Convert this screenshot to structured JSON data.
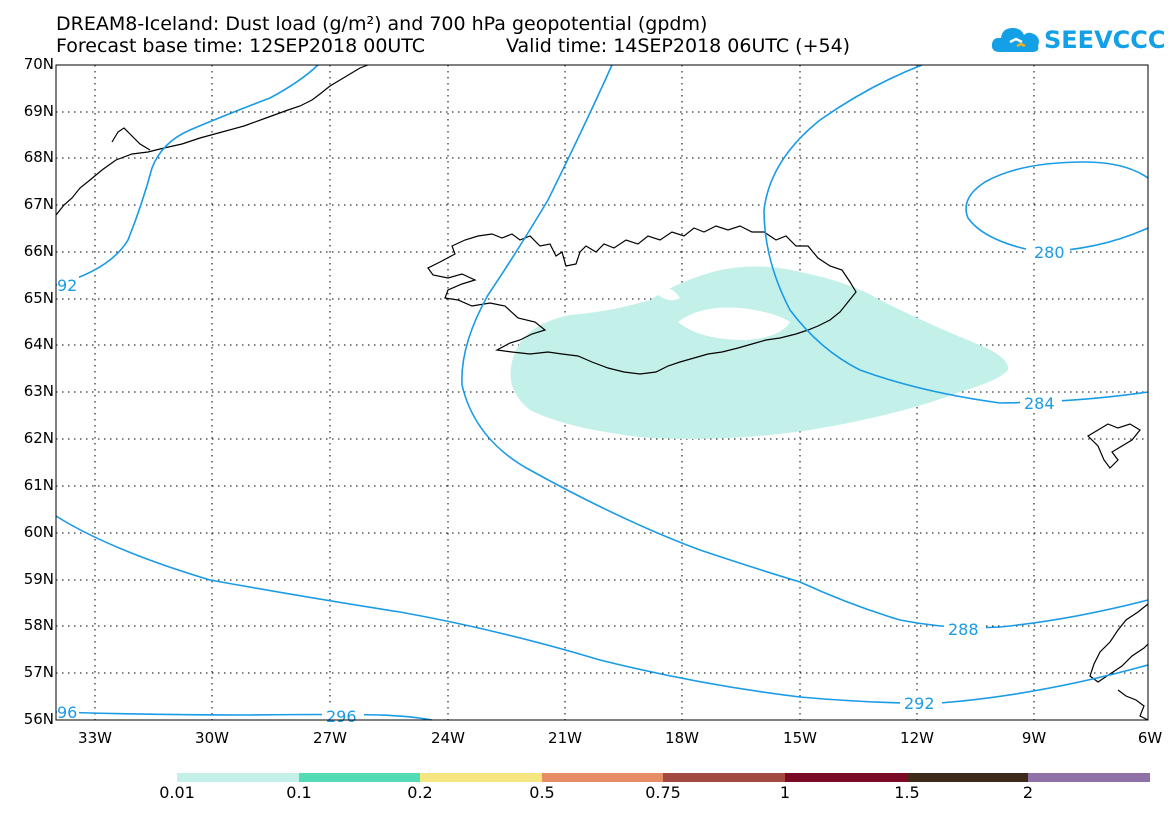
{
  "header": {
    "title_line1": "DREAM8-Iceland: Dust load (g/m²) and 700 hPa geopotential (gpdm)",
    "base_time": "Forecast base time: 12SEP2018 00UTC",
    "valid_time": "Valid time: 14SEP2018 06UTC (+54)"
  },
  "logo": {
    "text": "SEEVCCC",
    "icon": "cloud-icon",
    "color": "#14a0e6"
  },
  "map": {
    "lat_labels": [
      "70N",
      "69N",
      "68N",
      "67N",
      "66N",
      "65N",
      "64N",
      "63N",
      "62N",
      "61N",
      "60N",
      "59N",
      "58N",
      "57N",
      "56N"
    ],
    "lon_labels": [
      "33W",
      "30W",
      "27W",
      "24W",
      "21W",
      "18W",
      "15W",
      "12W",
      "9W",
      "6W"
    ],
    "contour_labels": [
      "92",
      "280",
      "284",
      "288",
      "292",
      "96",
      "296"
    ],
    "contour_color": "#1a9be6",
    "dust_fill_color": "#c4f0ea"
  },
  "colorbar": {
    "labels": [
      "0.01",
      "0.1",
      "0.2",
      "0.5",
      "0.75",
      "1",
      "1.5",
      "2"
    ],
    "colors": [
      "#c4f0ea",
      "#52dbb4",
      "#f5e67f",
      "#e78d66",
      "#a24941",
      "#7a0a26",
      "#3d2a19",
      "#8f71a8"
    ]
  }
}
